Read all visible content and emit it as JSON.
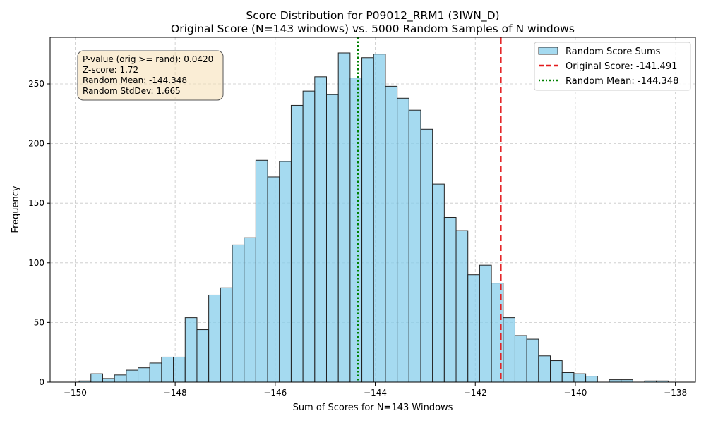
{
  "chart_data": {
    "type": "bar",
    "title": "Score Distribution for P09012_RRM1 (3IWN_D)",
    "subtitle": "Original Score (N=143 windows) vs. 5000 Random Samples of N windows",
    "xlabel": "Sum of Scores for N=143 Windows",
    "ylabel": "Frequency",
    "xlim": [
      -150.5,
      -137.6
    ],
    "ylim": [
      0,
      289
    ],
    "x_ticks": [
      -150,
      -148,
      -146,
      -144,
      -142,
      -140,
      -138
    ],
    "x_tick_labels": [
      "−150",
      "−148",
      "−146",
      "−144",
      "−142",
      "−140",
      "−138"
    ],
    "y_ticks": [
      0,
      50,
      100,
      150,
      200,
      250
    ],
    "y_tick_labels": [
      "0",
      "50",
      "100",
      "150",
      "200",
      "250"
    ],
    "grid": true,
    "bin_start": -149.92,
    "bin_width": 0.2355,
    "series": [
      {
        "name": "Random Score Sums",
        "color": "#87ceeb",
        "values": [
          1,
          7,
          3,
          6,
          10,
          12,
          16,
          21,
          21,
          54,
          44,
          73,
          79,
          115,
          121,
          186,
          172,
          185,
          232,
          244,
          256,
          241,
          276,
          255,
          272,
          275,
          248,
          238,
          228,
          212,
          166,
          138,
          127,
          90,
          98,
          83,
          54,
          39,
          36,
          22,
          18,
          8,
          7,
          5,
          0,
          2,
          2,
          0,
          1,
          1
        ]
      }
    ],
    "vlines": [
      {
        "name": "Original Score: -141.491",
        "x": -141.491,
        "color": "#e31a1c",
        "style": "dashed"
      },
      {
        "name": "Random Mean: -144.348",
        "x": -144.348,
        "color": "#008000",
        "style": "dotted"
      }
    ],
    "legend_position": "top-right",
    "stats_box": {
      "lines": [
        "P-value (orig >= rand): 0.0420",
        "Z-score: 1.72",
        "Random Mean: -144.348",
        "Random StdDev: 1.665"
      ]
    }
  }
}
